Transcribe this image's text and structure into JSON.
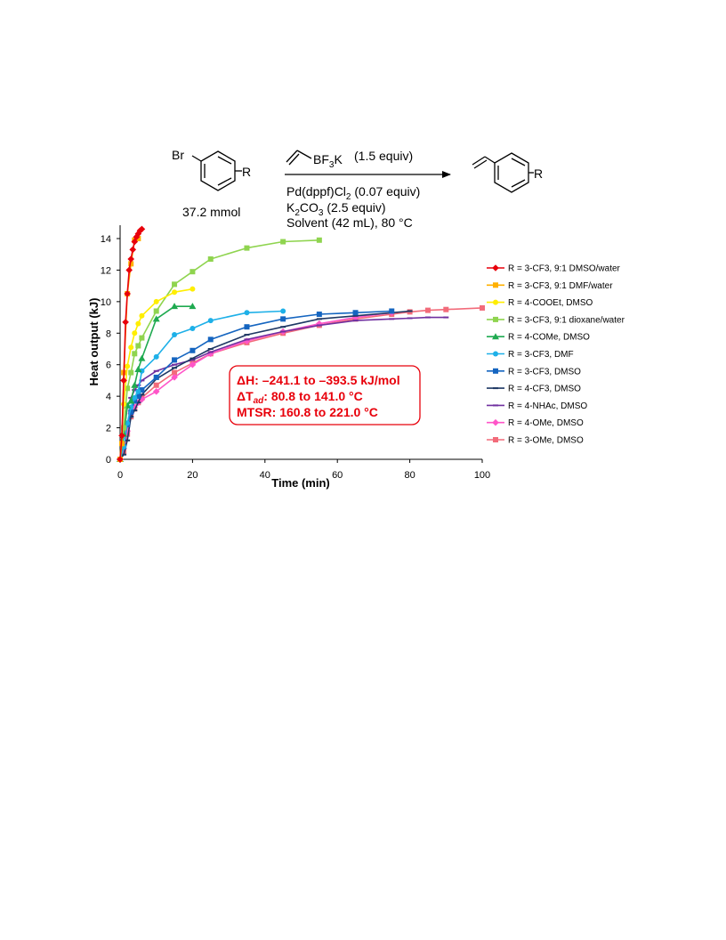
{
  "scheme": {
    "reactant_br": "Br",
    "reactant_r": "R",
    "product_r": "R",
    "reagent_bf3k_prefix": "BF",
    "reagent_bf3k_sub": "3",
    "reagent_bf3k_suffix": "K",
    "reagent_equiv": "(1.5 equiv)",
    "catalyst_prefix": "Pd(dppf)Cl",
    "catalyst_sub": "2",
    "catalyst_equiv": " (0.07 equiv)",
    "base_prefix": "K",
    "base_sub1": "2",
    "base_mid": "CO",
    "base_sub2": "3",
    "base_equiv": " (2.5 equiv)",
    "solvent_line": "Solvent (42 mL), 80 °C",
    "amount": "37.2 mmol"
  },
  "annotation": {
    "line1": "ΔH: –241.1 to –393.5 kJ/mol",
    "line2_prefix": "ΔT",
    "line2_sub": "ad",
    "line2_suffix": ": 80.8 to 141.0 °C",
    "line3": "MTSR: 160.8 to 221.0 °C",
    "border_color": "#e8000b",
    "text_color": "#e8000b"
  },
  "chart_data": {
    "type": "line",
    "xlabel": "Time (min)",
    "ylabel": "Heat output (kJ)",
    "xlim": [
      0,
      100
    ],
    "ylim": [
      0,
      14
    ],
    "xticks": [
      0,
      20,
      40,
      60,
      80,
      100
    ],
    "yticks": [
      0,
      2,
      4,
      6,
      8,
      10,
      12,
      14
    ],
    "grid": false,
    "legend_position": "right",
    "series": [
      {
        "name": "R = 3-CF3, 9:1 DMSO/water",
        "color": "#e8000b",
        "marker": "diamond",
        "x": [
          0,
          0.5,
          1,
          1.5,
          2,
          2.5,
          3,
          3.5,
          4,
          4.5,
          5,
          5.5,
          6
        ],
        "y": [
          0,
          1.5,
          5.0,
          8.7,
          10.5,
          12.0,
          12.7,
          13.3,
          13.8,
          14.1,
          14.3,
          14.5,
          14.6
        ]
      },
      {
        "name": "R = 3-CF3, 9:1 DMF/water",
        "color": "#ffb000",
        "marker": "square",
        "x": [
          0,
          0.5,
          1,
          2,
          3,
          4,
          5
        ],
        "y": [
          0,
          1.0,
          5.5,
          10.5,
          12.4,
          13.9,
          14.0
        ]
      },
      {
        "name": "R = 4-COOEt, DMSO",
        "color": "#ffee00",
        "marker": "circle",
        "x": [
          0,
          1,
          2,
          3,
          4,
          5,
          6,
          10,
          15,
          20
        ],
        "y": [
          0,
          3.5,
          5.9,
          7.1,
          8.0,
          8.6,
          9.1,
          10.0,
          10.6,
          10.8
        ]
      },
      {
        "name": "R = 3-CF3, 9:1 dioxane/water",
        "color": "#8fd44f",
        "marker": "square",
        "x": [
          0,
          1,
          2,
          3,
          4,
          5,
          6,
          10,
          15,
          20,
          25,
          35,
          45,
          55
        ],
        "y": [
          0,
          2.0,
          4.5,
          5.5,
          6.7,
          7.2,
          7.7,
          9.4,
          11.1,
          11.9,
          12.7,
          13.4,
          13.8,
          13.9
        ]
      },
      {
        "name": "R = 4-COMe, DMSO",
        "color": "#1faa50",
        "marker": "triangle",
        "x": [
          0,
          1,
          2,
          3,
          4,
          5,
          6,
          10,
          15,
          20
        ],
        "y": [
          0,
          1.6,
          3.4,
          3.7,
          4.7,
          5.7,
          6.4,
          8.9,
          9.7,
          9.7
        ]
      },
      {
        "name": "R = 3-CF3, DMF",
        "color": "#1eb0e8",
        "marker": "circle",
        "x": [
          0,
          1,
          2,
          3,
          4,
          5,
          6,
          10,
          15,
          20,
          25,
          35,
          45
        ],
        "y": [
          0,
          0.8,
          2.3,
          3.3,
          3.9,
          4.3,
          5.6,
          6.5,
          7.9,
          8.3,
          8.8,
          9.3,
          9.4
        ]
      },
      {
        "name": "R = 3-CF3, DMSO",
        "color": "#1565c0",
        "marker": "square",
        "x": [
          0,
          1,
          2,
          3,
          4,
          5,
          6,
          10,
          15,
          20,
          25,
          35,
          45,
          55,
          65,
          75
        ],
        "y": [
          0,
          0.8,
          2.2,
          3.0,
          3.7,
          4.0,
          4.4,
          5.2,
          6.3,
          6.9,
          7.6,
          8.4,
          8.9,
          9.2,
          9.3,
          9.4
        ]
      },
      {
        "name": "R = 4-CF3, DMSO",
        "color": "#1f3864",
        "marker": "dash",
        "x": [
          0,
          1,
          2,
          3,
          4,
          5,
          6,
          10,
          15,
          20,
          25,
          35,
          45,
          55,
          65,
          75,
          80
        ],
        "y": [
          0,
          0.3,
          1.2,
          2.7,
          3.1,
          3.6,
          4.1,
          5.1,
          5.8,
          6.4,
          7.0,
          7.9,
          8.4,
          8.9,
          9.1,
          9.3,
          9.4
        ]
      },
      {
        "name": "R = 4-NHAc, DMSO",
        "color": "#7030a0",
        "marker": "dash",
        "x": [
          0,
          1,
          2,
          3,
          4,
          5,
          6,
          10,
          15,
          20,
          25,
          35,
          45,
          55,
          65,
          75,
          80,
          85,
          90
        ],
        "y": [
          0,
          1.6,
          3.3,
          3.9,
          4.4,
          4.7,
          5.0,
          5.6,
          6.0,
          6.3,
          6.8,
          7.6,
          8.1,
          8.5,
          8.8,
          8.9,
          8.95,
          9.0,
          9.0
        ]
      },
      {
        "name": "R = 4-OMe, DMSO",
        "color": "#ff55c8",
        "marker": "diamond",
        "x": [
          0,
          1,
          2,
          3,
          4,
          5,
          6,
          10,
          15,
          20,
          25,
          35,
          45,
          55,
          65,
          75
        ],
        "y": [
          0,
          0.7,
          1.8,
          2.9,
          3.3,
          3.6,
          3.8,
          4.3,
          5.2,
          6.0,
          6.7,
          7.5,
          8.1,
          8.6,
          9.0,
          9.3
        ]
      },
      {
        "name": "R = 3-OMe, DMSO",
        "color": "#f26b7a",
        "marker": "square",
        "x": [
          0,
          1,
          2,
          3,
          4,
          5,
          6,
          10,
          15,
          20,
          25,
          35,
          45,
          55,
          65,
          75,
          80,
          85,
          90,
          100
        ],
        "y": [
          0,
          0.5,
          1.6,
          2.7,
          3.2,
          3.6,
          3.9,
          4.7,
          5.5,
          6.1,
          6.7,
          7.4,
          8.0,
          8.5,
          8.9,
          9.2,
          9.35,
          9.45,
          9.5,
          9.6
        ]
      }
    ]
  }
}
